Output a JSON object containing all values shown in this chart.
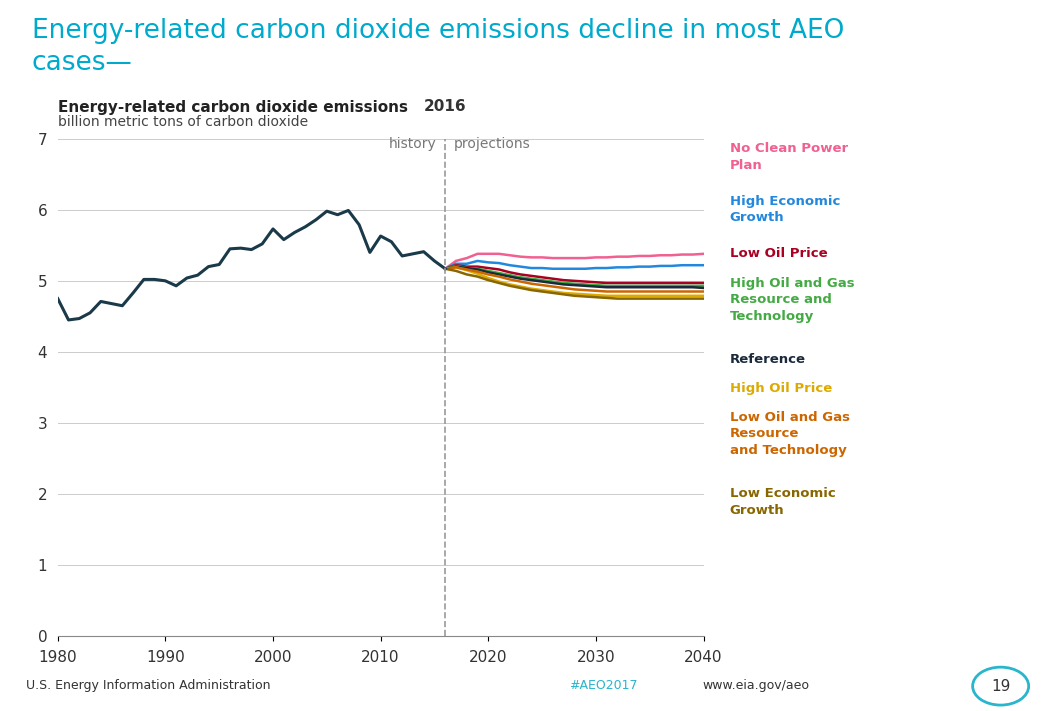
{
  "title_line1": "Energy-related carbon dioxide emissions decline in most AEO",
  "title_line2": "cases—",
  "title_color": "#00AACC",
  "chart_title": "Energy-related carbon dioxide emissions",
  "chart_subtitle": "billion metric tons of carbon dioxide",
  "background_color": "#FFFFFF",
  "history_years": [
    1980,
    1981,
    1982,
    1983,
    1984,
    1985,
    1986,
    1987,
    1988,
    1989,
    1990,
    1991,
    1992,
    1993,
    1994,
    1995,
    1996,
    1997,
    1998,
    1999,
    2000,
    2001,
    2002,
    2003,
    2004,
    2005,
    2006,
    2007,
    2008,
    2009,
    2010,
    2011,
    2012,
    2013,
    2014,
    2015,
    2016
  ],
  "history_values": [
    4.75,
    4.45,
    4.47,
    4.55,
    4.71,
    4.68,
    4.65,
    4.83,
    5.02,
    5.02,
    5.0,
    4.93,
    5.04,
    5.08,
    5.2,
    5.23,
    5.45,
    5.46,
    5.44,
    5.52,
    5.73,
    5.58,
    5.68,
    5.76,
    5.86,
    5.98,
    5.93,
    5.99,
    5.79,
    5.4,
    5.63,
    5.55,
    5.35,
    5.38,
    5.41,
    5.28,
    5.17
  ],
  "history_color": "#1a3a4a",
  "projection_years": [
    2016,
    2017,
    2018,
    2019,
    2020,
    2021,
    2022,
    2023,
    2024,
    2025,
    2026,
    2027,
    2028,
    2029,
    2030,
    2031,
    2032,
    2033,
    2034,
    2035,
    2036,
    2037,
    2038,
    2039,
    2040
  ],
  "scenarios": {
    "No Clean Power Plan": {
      "color": "#F06090",
      "values": [
        5.17,
        5.28,
        5.32,
        5.38,
        5.38,
        5.38,
        5.36,
        5.34,
        5.33,
        5.33,
        5.32,
        5.32,
        5.32,
        5.32,
        5.33,
        5.33,
        5.34,
        5.34,
        5.35,
        5.35,
        5.36,
        5.36,
        5.37,
        5.37,
        5.38
      ]
    },
    "High Economic Growth": {
      "color": "#2288DD",
      "values": [
        5.17,
        5.24,
        5.24,
        5.28,
        5.26,
        5.25,
        5.22,
        5.2,
        5.18,
        5.18,
        5.17,
        5.17,
        5.17,
        5.17,
        5.18,
        5.18,
        5.19,
        5.19,
        5.2,
        5.2,
        5.21,
        5.21,
        5.22,
        5.22,
        5.22
      ]
    },
    "Low Oil Price": {
      "color": "#AA0022",
      "values": [
        5.17,
        5.22,
        5.2,
        5.2,
        5.18,
        5.16,
        5.12,
        5.09,
        5.07,
        5.05,
        5.03,
        5.01,
        5.0,
        4.99,
        4.98,
        4.97,
        4.97,
        4.97,
        4.97,
        4.97,
        4.97,
        4.97,
        4.97,
        4.97,
        4.97
      ]
    },
    "High Oil and Gas Resource and Technology": {
      "color": "#44AA44",
      "values": [
        5.17,
        5.21,
        5.18,
        5.17,
        5.14,
        5.11,
        5.08,
        5.05,
        5.03,
        5.01,
        4.99,
        4.97,
        4.96,
        4.95,
        4.94,
        4.93,
        4.93,
        4.93,
        4.93,
        4.93,
        4.93,
        4.93,
        4.93,
        4.93,
        4.93
      ]
    },
    "Reference": {
      "color": "#1a2a3a",
      "values": [
        5.17,
        5.2,
        5.18,
        5.16,
        5.12,
        5.09,
        5.06,
        5.03,
        5.01,
        4.99,
        4.97,
        4.95,
        4.94,
        4.93,
        4.92,
        4.91,
        4.91,
        4.91,
        4.91,
        4.91,
        4.91,
        4.91,
        4.91,
        4.91,
        4.9
      ]
    },
    "High Oil Price": {
      "color": "#DDAA00",
      "values": [
        5.17,
        5.19,
        5.15,
        5.1,
        5.04,
        4.99,
        4.95,
        4.92,
        4.89,
        4.87,
        4.85,
        4.83,
        4.82,
        4.81,
        4.8,
        4.79,
        4.79,
        4.79,
        4.79,
        4.79,
        4.79,
        4.79,
        4.79,
        4.79,
        4.79
      ]
    },
    "Low Oil and Gas Resource and Technology": {
      "color": "#CC6600",
      "values": [
        5.17,
        5.19,
        5.16,
        5.13,
        5.09,
        5.06,
        5.02,
        4.99,
        4.96,
        4.94,
        4.92,
        4.9,
        4.88,
        4.87,
        4.86,
        4.85,
        4.85,
        4.85,
        4.85,
        4.85,
        4.85,
        4.85,
        4.85,
        4.85,
        4.85
      ]
    },
    "Low Economic Growth": {
      "color": "#886600",
      "values": [
        5.17,
        5.14,
        5.09,
        5.06,
        5.01,
        4.97,
        4.93,
        4.9,
        4.87,
        4.85,
        4.83,
        4.81,
        4.79,
        4.78,
        4.77,
        4.76,
        4.75,
        4.75,
        4.75,
        4.75,
        4.75,
        4.75,
        4.75,
        4.75,
        4.75
      ]
    }
  },
  "scenario_order": [
    "No Clean Power Plan",
    "High Economic Growth",
    "Low Oil Price",
    "High Oil and Gas Resource and Technology",
    "Reference",
    "High Oil Price",
    "Low Oil and Gas Resource and Technology",
    "Low Economic Growth"
  ],
  "ylim": [
    0,
    7
  ],
  "yticks": [
    0,
    1,
    2,
    3,
    4,
    5,
    6,
    7
  ],
  "xlim": [
    1980,
    2040
  ],
  "xticks": [
    1980,
    1990,
    2000,
    2010,
    2020,
    2030,
    2040
  ],
  "divider_year": 2016,
  "footer_left": "U.S. Energy Information Administration",
  "footer_hashtag": "#AEO2017",
  "footer_url": "www.eia.gov/aeo",
  "footer_page": "19",
  "footer_bar_color": "#29B5CC",
  "legend_labels": [
    [
      "No Clean Power\nPlan",
      "#F06090"
    ],
    [
      "High Economic\nGrowth",
      "#2288DD"
    ],
    [
      "Low Oil Price",
      "#AA0022"
    ],
    [
      "High Oil and Gas\nResource and\nTechnology",
      "#44AA44"
    ],
    [
      "Reference",
      "#1a2a3a"
    ],
    [
      "High Oil Price",
      "#DDAA00"
    ],
    [
      "Low Oil and Gas\nResource\nand Technology",
      "#CC6600"
    ],
    [
      "Low Economic\nGrowth",
      "#886600"
    ]
  ]
}
